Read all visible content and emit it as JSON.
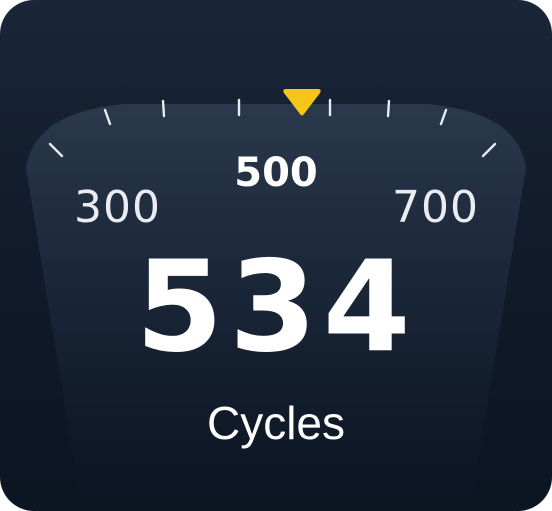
{
  "gauge": {
    "current_value": 534,
    "unit": "Cycles",
    "center_label": "500",
    "left_label": "300",
    "right_label": "700",
    "marker_color": "#f5c518",
    "tick_color": "#e6ebf2"
  }
}
